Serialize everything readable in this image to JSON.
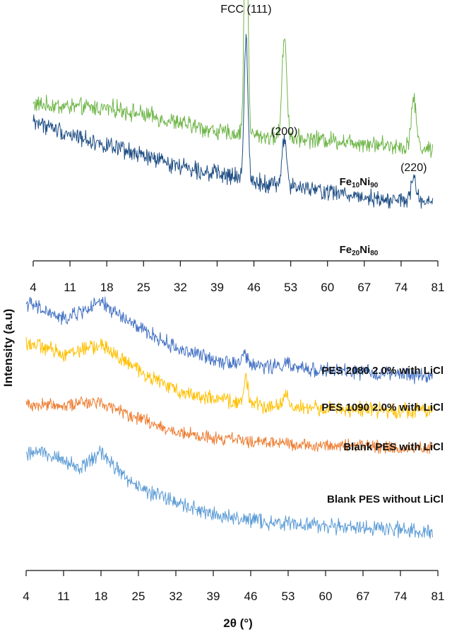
{
  "chart_data": [
    {
      "type": "line",
      "panel": "top",
      "x_ticks": [
        4,
        11,
        18,
        25,
        32,
        39,
        46,
        53,
        60,
        67,
        74,
        81
      ],
      "xlim": [
        4,
        81
      ],
      "peak_labels": [
        {
          "text": "FCC (111)",
          "x": 44.5
        },
        {
          "text": "(200)",
          "x": 51.8
        },
        {
          "text": "(220)",
          "x": 76.4
        }
      ],
      "series": [
        {
          "name_parts": [
            "Fe",
            "10",
            "Ni",
            "90"
          ],
          "color": "#6fb548",
          "baseline": [
            [
              4,
              0.62
            ],
            [
              10,
              0.61
            ],
            [
              20,
              0.6
            ],
            [
              30,
              0.55
            ],
            [
              40,
              0.5
            ],
            [
              50,
              0.48
            ],
            [
              60,
              0.47
            ],
            [
              70,
              0.45
            ],
            [
              80,
              0.43
            ]
          ],
          "noise": 0.055,
          "peaks": [
            [
              44.5,
              1.0,
              0.35
            ],
            [
              51.8,
              0.43,
              0.45
            ],
            [
              76.4,
              0.2,
              0.5
            ]
          ]
        },
        {
          "name_parts": [
            "Fe",
            "20",
            "Ni",
            "80"
          ],
          "color": "#1f4e84",
          "baseline": [
            [
              4,
              0.55
            ],
            [
              10,
              0.5
            ],
            [
              20,
              0.43
            ],
            [
              30,
              0.37
            ],
            [
              40,
              0.32
            ],
            [
              50,
              0.28
            ],
            [
              60,
              0.25
            ],
            [
              70,
              0.22
            ],
            [
              80,
              0.2
            ]
          ],
          "noise": 0.055,
          "peaks": [
            [
              44.5,
              0.62,
              0.35
            ],
            [
              51.8,
              0.2,
              0.45
            ],
            [
              76.4,
              0.1,
              0.5
            ]
          ]
        }
      ]
    },
    {
      "type": "line",
      "panel": "bottom",
      "x_ticks": [
        4,
        11,
        18,
        25,
        32,
        39,
        46,
        53,
        60,
        67,
        74,
        81
      ],
      "xlim": [
        4,
        81
      ],
      "xlabel": "2θ (°)",
      "ylabel": "Intensity (a.u)",
      "series": [
        {
          "name": "PES 2080 2.0% with LiCl",
          "color": "#4472c4",
          "baseline": [
            [
              4,
              0.93
            ],
            [
              11,
              0.87
            ],
            [
              18,
              0.93
            ],
            [
              25,
              0.84
            ],
            [
              32,
              0.77
            ],
            [
              39,
              0.73
            ],
            [
              46,
              0.71
            ],
            [
              53,
              0.7
            ],
            [
              60,
              0.69
            ],
            [
              70,
              0.68
            ],
            [
              80,
              0.67
            ]
          ],
          "noise": 0.04,
          "peaks": [
            [
              44.8,
              0.04,
              0.4
            ],
            [
              52.5,
              0.02,
              0.5
            ]
          ]
        },
        {
          "name": "PES 1090 2.0% with LiCl",
          "color": "#ffc000",
          "baseline": [
            [
              4,
              0.79
            ],
            [
              11,
              0.75
            ],
            [
              18,
              0.78
            ],
            [
              25,
              0.69
            ],
            [
              32,
              0.62
            ],
            [
              39,
              0.59
            ],
            [
              46,
              0.57
            ],
            [
              53,
              0.56
            ],
            [
              60,
              0.555
            ],
            [
              70,
              0.55
            ],
            [
              80,
              0.55
            ]
          ],
          "noise": 0.04,
          "peaks": [
            [
              45.1,
              0.1,
              0.35
            ],
            [
              52.6,
              0.055,
              0.4
            ]
          ]
        },
        {
          "name": "Blank PES with LiCl",
          "color": "#ed7d31",
          "baseline": [
            [
              4,
              0.57
            ],
            [
              11,
              0.57
            ],
            [
              18,
              0.58
            ],
            [
              25,
              0.52
            ],
            [
              32,
              0.47
            ],
            [
              39,
              0.45
            ],
            [
              46,
              0.44
            ],
            [
              53,
              0.43
            ],
            [
              60,
              0.425
            ],
            [
              70,
              0.42
            ],
            [
              80,
              0.415
            ]
          ],
          "noise": 0.035,
          "peaks": []
        },
        {
          "name": "Blank PES without LiCl",
          "color": "#5b9bd5",
          "baseline": [
            [
              4,
              0.39
            ],
            [
              7,
              0.41
            ],
            [
              11,
              0.37
            ],
            [
              14,
              0.34
            ],
            [
              18,
              0.4
            ],
            [
              22,
              0.32
            ],
            [
              25,
              0.28
            ],
            [
              32,
              0.22
            ],
            [
              39,
              0.18
            ],
            [
              46,
              0.16
            ],
            [
              53,
              0.15
            ],
            [
              60,
              0.14
            ],
            [
              70,
              0.13
            ],
            [
              80,
              0.125
            ]
          ],
          "noise": 0.04,
          "peaks": []
        }
      ]
    }
  ]
}
